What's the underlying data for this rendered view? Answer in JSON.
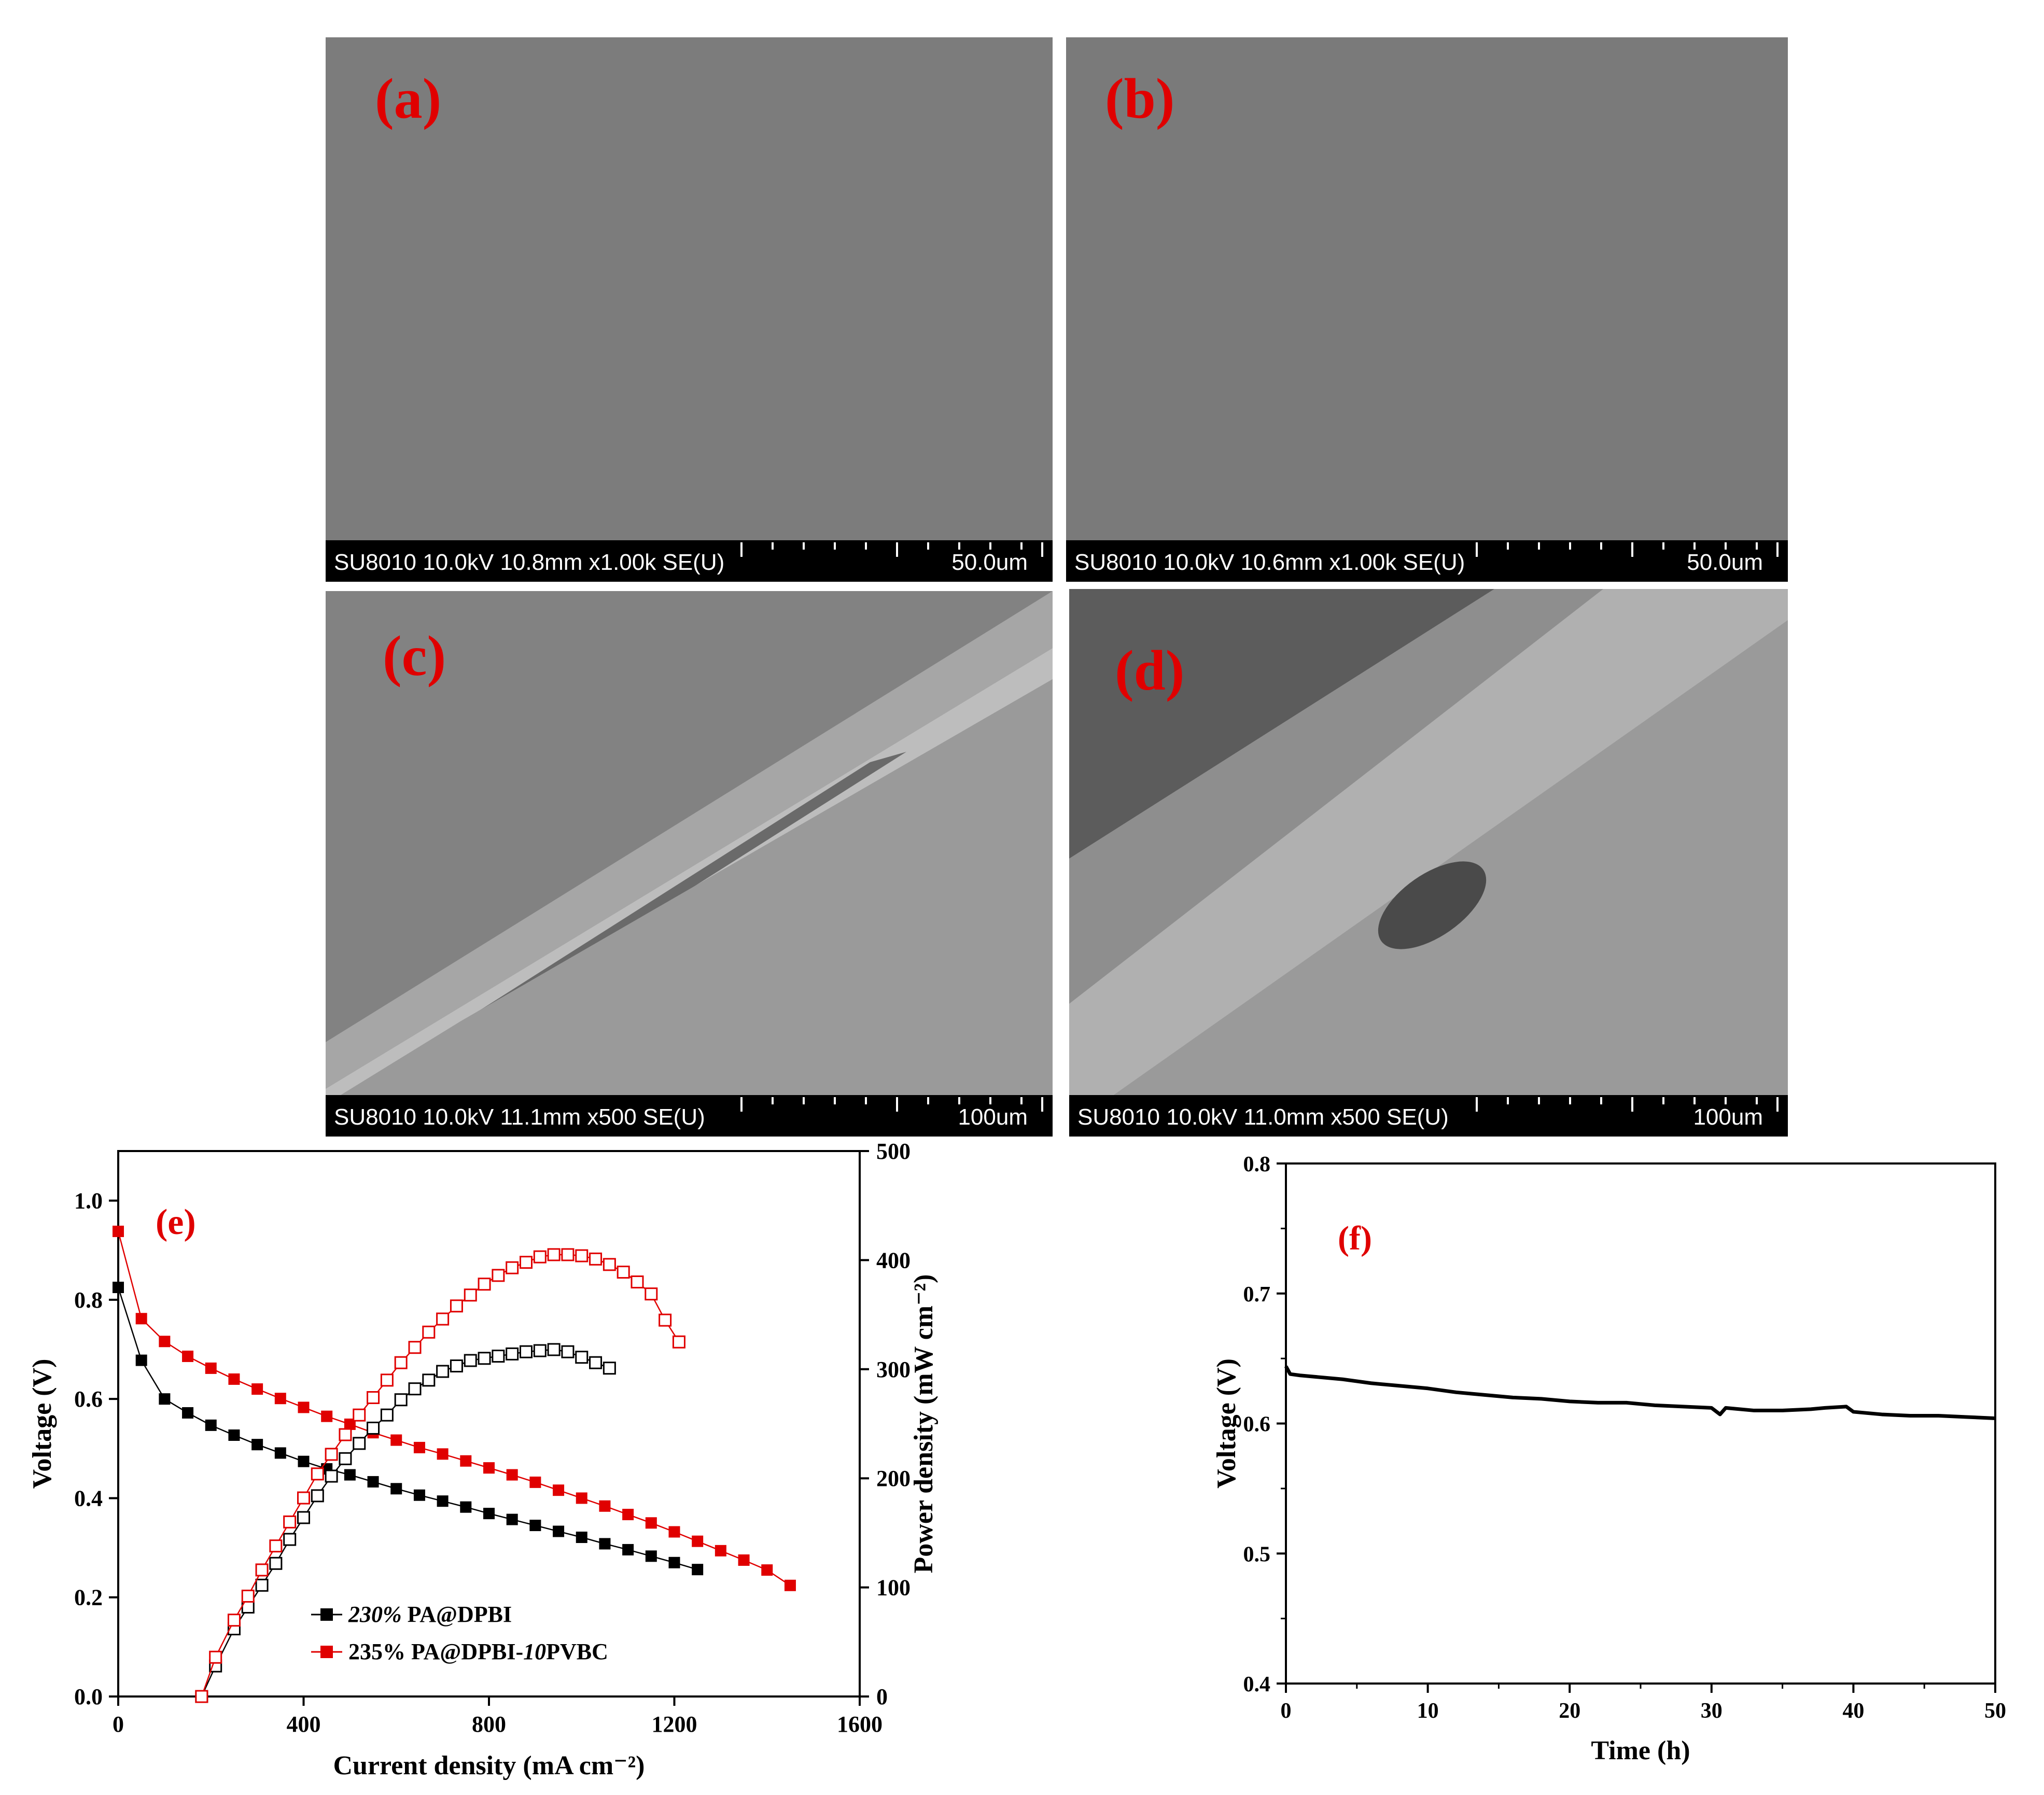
{
  "colors": {
    "label": "#e00000",
    "series_black": "#000000",
    "series_red": "#e00000"
  },
  "panels": {
    "a": {
      "label": "(a)",
      "info": "SU8010 10.0kV 10.8mm x1.00k SE(U)",
      "scale": "50.0um"
    },
    "b": {
      "label": "(b)",
      "info": "SU8010 10.0kV 10.6mm x1.00k SE(U)",
      "scale": "50.0um"
    },
    "c": {
      "label": "(c)",
      "info": "SU8010 10.0kV 11.1mm x500 SE(U)",
      "scale": "100um"
    },
    "d": {
      "label": "(d)",
      "info": "SU8010 10.0kV 11.0mm x500 SE(U)",
      "scale": "100um"
    },
    "e": {
      "label": "(e)"
    },
    "f": {
      "label": "(f)"
    }
  },
  "chart_data": [
    {
      "type": "line",
      "panel": "e",
      "xlabel": "Current density (mA cm⁻²)",
      "ylabel": "Voltage (V)",
      "y2label": "Power density (mW cm⁻²)",
      "xlim": [
        0,
        1600
      ],
      "ylim": [
        0,
        1.1
      ],
      "y2lim": [
        0,
        500
      ],
      "xticks": [
        "0",
        "400",
        "800",
        "1200",
        "1600"
      ],
      "yticks": [
        "0.0",
        "0.2",
        "0.4",
        "0.6",
        "0.8",
        "1.0"
      ],
      "y2ticks": [
        "0",
        "100",
        "200",
        "300",
        "400",
        "500"
      ],
      "legend_position": "bottom-left",
      "series": [
        {
          "name_italic": "230%",
          "name_rest": " PA@DPBI",
          "color": "#000000",
          "marker": "filled-square",
          "axis": "voltage",
          "x": [
            0,
            50,
            100,
            150,
            200,
            250,
            300,
            350,
            400,
            450,
            500,
            550,
            600,
            650,
            700,
            750,
            800,
            850,
            900,
            950,
            1000,
            1050,
            1100,
            1150,
            1200,
            1250
          ],
          "y": [
            0.825,
            0.678,
            0.6,
            0.572,
            0.547,
            0.527,
            0.508,
            0.491,
            0.474,
            0.459,
            0.447,
            0.433,
            0.419,
            0.406,
            0.394,
            0.382,
            0.369,
            0.357,
            0.345,
            0.333,
            0.321,
            0.308,
            0.296,
            0.283,
            0.27,
            0.256
          ]
        },
        {
          "name": "235% PA@DPBI-10PVBC",
          "name_plain1": "235% PA@DPBI-",
          "name_italic": "10",
          "name_plain2": "PVBC",
          "color": "#e00000",
          "marker": "filled-square",
          "axis": "voltage",
          "x": [
            0,
            50,
            100,
            150,
            200,
            250,
            300,
            350,
            400,
            450,
            500,
            550,
            600,
            650,
            700,
            750,
            800,
            850,
            900,
            950,
            1000,
            1050,
            1100,
            1150,
            1200,
            1250,
            1300,
            1350,
            1400,
            1450
          ],
          "y": [
            0.938,
            0.762,
            0.716,
            0.686,
            0.662,
            0.64,
            0.62,
            0.601,
            0.583,
            0.565,
            0.549,
            0.532,
            0.517,
            0.502,
            0.489,
            0.475,
            0.461,
            0.447,
            0.432,
            0.416,
            0.4,
            0.384,
            0.367,
            0.35,
            0.332,
            0.313,
            0.294,
            0.275,
            0.255,
            0.224
          ]
        },
        {
          "color": "#000000",
          "marker": "open-square",
          "axis": "power",
          "x": [
            180,
            210,
            250,
            280,
            310,
            340,
            370,
            400,
            430,
            460,
            490,
            520,
            550,
            580,
            610,
            640,
            670,
            700,
            730,
            760,
            790,
            820,
            850,
            880,
            910,
            940,
            970,
            1000,
            1030,
            1060
          ],
          "y": [
            0,
            28,
            62,
            82,
            102,
            122,
            144,
            164,
            184,
            202,
            218,
            232,
            246,
            258,
            272,
            282,
            290,
            298,
            303,
            308,
            310,
            312,
            314,
            316,
            317,
            318,
            316,
            311,
            306,
            301
          ]
        },
        {
          "color": "#e00000",
          "marker": "open-square",
          "axis": "power",
          "x": [
            180,
            210,
            250,
            280,
            310,
            340,
            370,
            400,
            430,
            460,
            490,
            520,
            550,
            580,
            610,
            640,
            670,
            700,
            730,
            760,
            790,
            820,
            850,
            880,
            910,
            940,
            970,
            1000,
            1030,
            1060,
            1090,
            1120,
            1150,
            1180,
            1210
          ],
          "y": [
            0,
            36,
            70,
            92,
            116,
            138,
            160,
            182,
            204,
            222,
            240,
            258,
            274,
            290,
            306,
            320,
            334,
            346,
            358,
            368,
            378,
            386,
            393,
            398,
            403,
            405,
            405,
            404,
            401,
            396,
            389,
            380,
            369,
            345,
            325
          ]
        }
      ]
    },
    {
      "type": "line",
      "panel": "f",
      "xlabel": "Time (h)",
      "ylabel": "Voltage (V)",
      "xlim": [
        0,
        50
      ],
      "ylim": [
        0.4,
        0.8
      ],
      "xticks": [
        "0",
        "10",
        "20",
        "30",
        "40",
        "50"
      ],
      "yticks": [
        "0.4",
        "0.5",
        "0.6",
        "0.7",
        "0.8"
      ],
      "series": [
        {
          "color": "#000000",
          "x": [
            0,
            0.3,
            1,
            2,
            4,
            6,
            8,
            10,
            12,
            14,
            16,
            18,
            20,
            22,
            24,
            26,
            28,
            30,
            30.6,
            31,
            33,
            35,
            37,
            38,
            39.5,
            40,
            42,
            44,
            46,
            48,
            50
          ],
          "y": [
            0.644,
            0.638,
            0.637,
            0.636,
            0.634,
            0.631,
            0.629,
            0.627,
            0.624,
            0.622,
            0.62,
            0.619,
            0.617,
            0.616,
            0.616,
            0.614,
            0.613,
            0.612,
            0.607,
            0.612,
            0.61,
            0.61,
            0.611,
            0.612,
            0.613,
            0.609,
            0.607,
            0.606,
            0.606,
            0.605,
            0.604
          ]
        }
      ]
    }
  ]
}
